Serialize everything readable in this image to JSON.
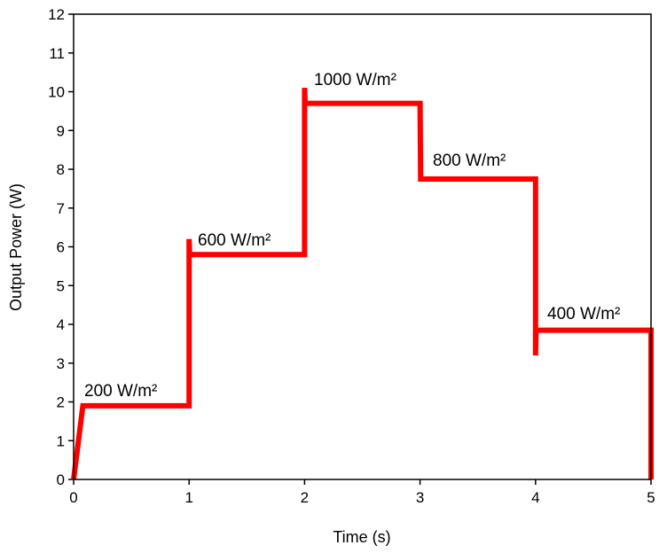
{
  "chart_data": {
    "type": "line",
    "xlabel": "Time (s)",
    "ylabel": "Output Power (W)",
    "x": [
      0,
      0.08,
      1,
      1,
      1.005,
      2,
      2,
      2.005,
      3,
      3.005,
      4,
      4,
      4.005,
      5,
      5
    ],
    "series": [
      {
        "color": "#ff0000",
        "values": [
          0,
          1.9,
          1.9,
          6.2,
          5.8,
          5.8,
          10.1,
          9.7,
          9.7,
          7.75,
          7.75,
          3.2,
          3.85,
          3.85,
          0
        ]
      }
    ],
    "xlim": [
      0,
      5
    ],
    "xticks": [
      0,
      1,
      2,
      3,
      4,
      5
    ],
    "ylim": [
      0,
      12
    ],
    "yticks": [
      0,
      1,
      2,
      3,
      4,
      5,
      6,
      7,
      8,
      9,
      10,
      11,
      12
    ],
    "annotations": [
      "200 W/m²",
      "600 W/m²",
      "1000 W/m²",
      "800 W/m²",
      "400 W/m²"
    ]
  }
}
